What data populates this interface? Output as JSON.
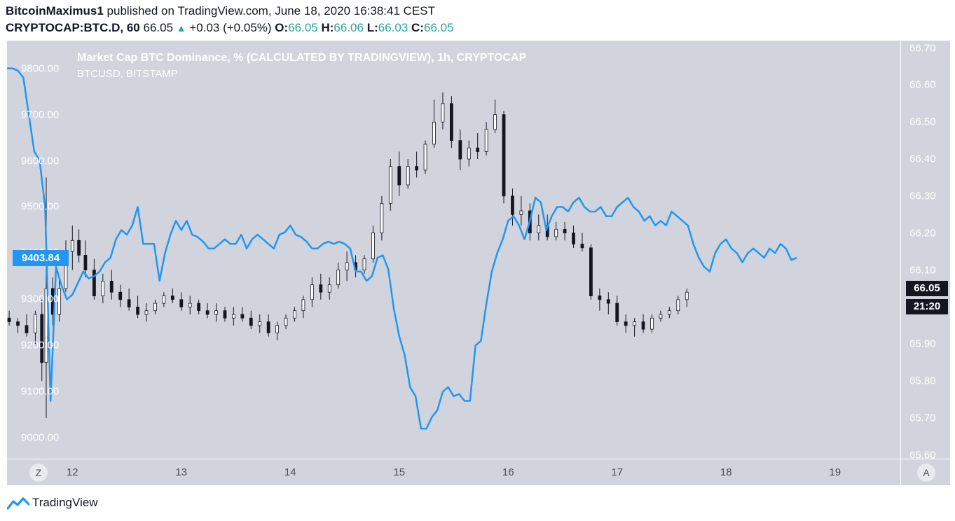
{
  "header": {
    "author": "BitcoinMaximus1",
    "published_text": "published on TradingView.com, June 18, 2020 16:38:41 CEST",
    "symbol": "CRYPTOCAP:BTC.D, 60",
    "last": "66.05",
    "change": "+0.03 (+0.05%)",
    "o_label": "O:",
    "o_value": "66.05",
    "h_label": "H:",
    "h_value": "66.06",
    "l_label": "L:",
    "l_value": "66.03",
    "c_label": "C:",
    "c_value": "66.05"
  },
  "legend": {
    "series1": "Market Cap BTC Dominance, % (CALCULATED BY TRADINGVIEW), 1h, CRYPTOCAP",
    "series2": "BTCUSD, BITSTAMP"
  },
  "tags": {
    "btcusd_last": "9403.84",
    "dominance_last": "66.05",
    "countdown": "21:20"
  },
  "buttons": {
    "left": "Z",
    "right": "A"
  },
  "brand": {
    "name": "TradingView"
  },
  "colors": {
    "line": "#2196f3",
    "bull": "#ffffff",
    "bear": "#131722",
    "plot_bg": "#d1d4dc"
  },
  "chart_data": {
    "type": "candlestick+line",
    "left_axis": {
      "label": "BTCUSD",
      "ticks": [
        "9800.00",
        "9700.00",
        "9600.00",
        "9500.00",
        "9400.00",
        "9300.00",
        "9200.00",
        "9100.00",
        "9000.00"
      ],
      "range": [
        8955,
        9860
      ]
    },
    "right_axis": {
      "label": "BTC.D %",
      "ticks": [
        "66.70",
        "66.60",
        "66.50",
        "66.40",
        "66.30",
        "66.20",
        "66.10",
        "66.00",
        "65.90",
        "65.80",
        "65.70",
        "65.60"
      ],
      "range": [
        65.59,
        66.72
      ]
    },
    "x_ticks": [
      "12",
      "13",
      "14",
      "15",
      "16",
      "17",
      "18",
      "19"
    ],
    "x_range_days": [
      11.4,
      19.6
    ],
    "btcusd_line": [
      [
        11.4,
        9800
      ],
      [
        11.45,
        9800
      ],
      [
        11.5,
        9795
      ],
      [
        11.55,
        9780
      ],
      [
        11.6,
        9700
      ],
      [
        11.65,
        9620
      ],
      [
        11.7,
        9600
      ],
      [
        11.75,
        9500
      ],
      [
        11.8,
        9080
      ],
      [
        11.85,
        9370
      ],
      [
        11.9,
        9330
      ],
      [
        11.95,
        9300
      ],
      [
        12.0,
        9310
      ],
      [
        12.05,
        9335
      ],
      [
        12.1,
        9360
      ],
      [
        12.15,
        9345
      ],
      [
        12.2,
        9350
      ],
      [
        12.25,
        9360
      ],
      [
        12.3,
        9380
      ],
      [
        12.35,
        9390
      ],
      [
        12.4,
        9430
      ],
      [
        12.45,
        9450
      ],
      [
        12.5,
        9440
      ],
      [
        12.55,
        9460
      ],
      [
        12.6,
        9500
      ],
      [
        12.65,
        9420
      ],
      [
        12.7,
        9420
      ],
      [
        12.75,
        9420
      ],
      [
        12.8,
        9340
      ],
      [
        12.85,
        9400
      ],
      [
        12.9,
        9440
      ],
      [
        12.95,
        9470
      ],
      [
        13.0,
        9450
      ],
      [
        13.05,
        9470
      ],
      [
        13.1,
        9440
      ],
      [
        13.15,
        9435
      ],
      [
        13.2,
        9425
      ],
      [
        13.25,
        9410
      ],
      [
        13.3,
        9410
      ],
      [
        13.35,
        9420
      ],
      [
        13.4,
        9430
      ],
      [
        13.45,
        9420
      ],
      [
        13.5,
        9420
      ],
      [
        13.55,
        9440
      ],
      [
        13.6,
        9410
      ],
      [
        13.65,
        9430
      ],
      [
        13.7,
        9440
      ],
      [
        13.75,
        9430
      ],
      [
        13.8,
        9420
      ],
      [
        13.85,
        9410
      ],
      [
        13.9,
        9440
      ],
      [
        13.95,
        9445
      ],
      [
        14.0,
        9460
      ],
      [
        14.05,
        9440
      ],
      [
        14.1,
        9435
      ],
      [
        14.15,
        9425
      ],
      [
        14.2,
        9410
      ],
      [
        14.25,
        9410
      ],
      [
        14.3,
        9420
      ],
      [
        14.35,
        9425
      ],
      [
        14.4,
        9420
      ],
      [
        14.45,
        9425
      ],
      [
        14.5,
        9420
      ],
      [
        14.55,
        9410
      ],
      [
        14.6,
        9360
      ],
      [
        14.65,
        9360
      ],
      [
        14.7,
        9340
      ],
      [
        14.75,
        9350
      ],
      [
        14.8,
        9390
      ],
      [
        14.85,
        9395
      ],
      [
        14.9,
        9365
      ],
      [
        14.95,
        9280
      ],
      [
        15.0,
        9220
      ],
      [
        15.05,
        9180
      ],
      [
        15.1,
        9110
      ],
      [
        15.15,
        9090
      ],
      [
        15.2,
        9020
      ],
      [
        15.25,
        9020
      ],
      [
        15.3,
        9045
      ],
      [
        15.35,
        9060
      ],
      [
        15.4,
        9100
      ],
      [
        15.45,
        9110
      ],
      [
        15.5,
        9090
      ],
      [
        15.55,
        9095
      ],
      [
        15.6,
        9080
      ],
      [
        15.65,
        9080
      ],
      [
        15.7,
        9200
      ],
      [
        15.75,
        9210
      ],
      [
        15.8,
        9290
      ],
      [
        15.85,
        9360
      ],
      [
        15.9,
        9400
      ],
      [
        15.95,
        9430
      ],
      [
        16.0,
        9470
      ],
      [
        16.05,
        9480
      ],
      [
        16.1,
        9460
      ],
      [
        16.15,
        9430
      ],
      [
        16.2,
        9470
      ],
      [
        16.25,
        9520
      ],
      [
        16.3,
        9510
      ],
      [
        16.35,
        9450
      ],
      [
        16.4,
        9480
      ],
      [
        16.45,
        9500
      ],
      [
        16.5,
        9500
      ],
      [
        16.55,
        9490
      ],
      [
        16.6,
        9510
      ],
      [
        16.65,
        9520
      ],
      [
        16.7,
        9500
      ],
      [
        16.75,
        9490
      ],
      [
        16.8,
        9490
      ],
      [
        16.85,
        9500
      ],
      [
        16.9,
        9480
      ],
      [
        16.95,
        9480
      ],
      [
        17.0,
        9500
      ],
      [
        17.05,
        9510
      ],
      [
        17.1,
        9520
      ],
      [
        17.15,
        9500
      ],
      [
        17.2,
        9490
      ],
      [
        17.25,
        9470
      ],
      [
        17.3,
        9480
      ],
      [
        17.35,
        9460
      ],
      [
        17.4,
        9470
      ],
      [
        17.45,
        9460
      ],
      [
        17.5,
        9490
      ],
      [
        17.55,
        9480
      ],
      [
        17.6,
        9470
      ],
      [
        17.65,
        9460
      ],
      [
        17.7,
        9420
      ],
      [
        17.75,
        9390
      ],
      [
        17.8,
        9370
      ],
      [
        17.85,
        9360
      ],
      [
        17.9,
        9400
      ],
      [
        17.95,
        9420
      ],
      [
        18.0,
        9430
      ],
      [
        18.05,
        9410
      ],
      [
        18.1,
        9400
      ],
      [
        18.15,
        9380
      ],
      [
        18.2,
        9400
      ],
      [
        18.25,
        9410
      ],
      [
        18.3,
        9400
      ],
      [
        18.35,
        9390
      ],
      [
        18.4,
        9410
      ],
      [
        18.45,
        9400
      ],
      [
        18.5,
        9420
      ],
      [
        18.55,
        9410
      ],
      [
        18.6,
        9385
      ],
      [
        18.65,
        9390
      ]
    ],
    "dominance_candles": [
      [
        11.42,
        65.97,
        65.99,
        65.95,
        65.96
      ],
      [
        11.5,
        65.96,
        65.97,
        65.93,
        65.95
      ],
      [
        11.58,
        65.95,
        65.98,
        65.92,
        65.93
      ],
      [
        11.66,
        65.93,
        65.99,
        65.9,
        65.98
      ],
      [
        11.72,
        65.98,
        66.02,
        65.8,
        65.85
      ],
      [
        11.76,
        65.85,
        66.35,
        65.7,
        66.05
      ],
      [
        11.82,
        66.05,
        66.08,
        65.95,
        65.98
      ],
      [
        11.88,
        65.98,
        66.08,
        65.96,
        66.05
      ],
      [
        11.94,
        66.05,
        66.18,
        66.04,
        66.15
      ],
      [
        12.0,
        66.15,
        66.22,
        66.1,
        66.18
      ],
      [
        12.06,
        66.18,
        66.21,
        66.12,
        66.14
      ],
      [
        12.12,
        66.14,
        66.18,
        66.08,
        66.1
      ],
      [
        12.2,
        66.1,
        66.13,
        66.02,
        66.03
      ],
      [
        12.28,
        66.03,
        66.09,
        66.01,
        66.07
      ],
      [
        12.36,
        66.07,
        66.1,
        66.02,
        66.04
      ],
      [
        12.44,
        66.04,
        66.06,
        66.0,
        66.02
      ],
      [
        12.52,
        66.02,
        66.05,
        65.99,
        66.0
      ],
      [
        12.6,
        66.0,
        66.03,
        65.97,
        65.98
      ],
      [
        12.68,
        65.98,
        66.01,
        65.96,
        65.99
      ],
      [
        12.76,
        65.99,
        66.02,
        65.98,
        66.01
      ],
      [
        12.84,
        66.01,
        66.04,
        66.0,
        66.03
      ],
      [
        12.92,
        66.03,
        66.05,
        66.01,
        66.02
      ],
      [
        13.0,
        66.02,
        66.04,
        65.99,
        66.0
      ],
      [
        13.08,
        66.0,
        66.03,
        65.98,
        66.01
      ],
      [
        13.16,
        66.01,
        66.02,
        65.98,
        65.99
      ],
      [
        13.24,
        65.99,
        66.01,
        65.97,
        65.98
      ],
      [
        13.32,
        65.98,
        66.01,
        65.96,
        65.99
      ],
      [
        13.4,
        65.99,
        66.0,
        65.96,
        65.97
      ],
      [
        13.48,
        65.97,
        66.0,
        65.95,
        65.98
      ],
      [
        13.56,
        65.98,
        66.0,
        65.96,
        65.97
      ],
      [
        13.64,
        65.97,
        65.99,
        65.94,
        65.95
      ],
      [
        13.72,
        65.95,
        65.98,
        65.93,
        65.96
      ],
      [
        13.8,
        65.96,
        65.98,
        65.92,
        65.93
      ],
      [
        13.88,
        65.93,
        65.96,
        65.91,
        65.95
      ],
      [
        13.96,
        65.95,
        65.98,
        65.94,
        65.97
      ],
      [
        14.04,
        65.97,
        66.0,
        65.96,
        65.99
      ],
      [
        14.12,
        65.99,
        66.03,
        65.97,
        66.02
      ],
      [
        14.2,
        66.02,
        66.08,
        66.0,
        66.06
      ],
      [
        14.28,
        66.06,
        66.09,
        66.02,
        66.04
      ],
      [
        14.36,
        66.04,
        66.08,
        66.02,
        66.06
      ],
      [
        14.44,
        66.06,
        66.12,
        66.05,
        66.1
      ],
      [
        14.52,
        66.1,
        66.15,
        66.07,
        66.12
      ],
      [
        14.6,
        66.12,
        66.14,
        66.08,
        66.1
      ],
      [
        14.68,
        66.1,
        66.14,
        66.09,
        66.13
      ],
      [
        14.76,
        66.13,
        66.22,
        66.12,
        66.2
      ],
      [
        14.84,
        66.2,
        66.3,
        66.18,
        66.28
      ],
      [
        14.92,
        66.28,
        66.4,
        66.26,
        66.38
      ],
      [
        15.0,
        66.38,
        66.42,
        66.3,
        66.33
      ],
      [
        15.08,
        66.33,
        66.4,
        66.32,
        66.38
      ],
      [
        15.16,
        66.38,
        66.42,
        66.35,
        66.37
      ],
      [
        15.24,
        66.37,
        66.45,
        66.36,
        66.44
      ],
      [
        15.32,
        66.44,
        66.56,
        66.43,
        66.5
      ],
      [
        15.4,
        66.5,
        66.58,
        66.48,
        66.55
      ],
      [
        15.48,
        66.55,
        66.57,
        66.43,
        66.45
      ],
      [
        15.56,
        66.45,
        66.48,
        66.37,
        66.4
      ],
      [
        15.64,
        66.4,
        66.45,
        66.38,
        66.43
      ],
      [
        15.72,
        66.43,
        66.47,
        66.4,
        66.42
      ],
      [
        15.8,
        66.42,
        66.5,
        66.41,
        66.48
      ],
      [
        15.88,
        66.48,
        66.56,
        66.47,
        66.52
      ],
      [
        15.96,
        66.52,
        66.53,
        66.28,
        66.3
      ],
      [
        16.04,
        66.3,
        66.32,
        66.22,
        66.25
      ],
      [
        16.12,
        66.25,
        66.3,
        66.22,
        66.26
      ],
      [
        16.2,
        66.26,
        66.28,
        66.18,
        66.2
      ],
      [
        16.28,
        66.2,
        66.25,
        66.18,
        66.22
      ],
      [
        16.36,
        66.22,
        66.25,
        66.18,
        66.19
      ],
      [
        16.44,
        66.19,
        66.23,
        66.18,
        66.21
      ],
      [
        16.52,
        66.21,
        66.23,
        66.18,
        66.2
      ],
      [
        16.6,
        66.2,
        66.22,
        66.16,
        66.17
      ],
      [
        16.68,
        66.17,
        66.2,
        66.15,
        66.16
      ],
      [
        16.76,
        66.16,
        66.17,
        66.02,
        66.03
      ],
      [
        16.84,
        66.03,
        66.05,
        65.99,
        66.02
      ],
      [
        16.92,
        66.02,
        66.04,
        65.98,
        66.01
      ],
      [
        17.0,
        66.01,
        66.03,
        65.95,
        65.96
      ],
      [
        17.08,
        65.96,
        65.98,
        65.93,
        65.95
      ],
      [
        17.16,
        65.95,
        65.97,
        65.92,
        65.96
      ],
      [
        17.24,
        65.96,
        65.98,
        65.93,
        65.94
      ],
      [
        17.32,
        65.94,
        65.98,
        65.93,
        65.97
      ],
      [
        17.4,
        65.97,
        65.99,
        65.96,
        65.98
      ],
      [
        17.48,
        65.98,
        66.0,
        65.97,
        65.99
      ],
      [
        17.56,
        65.99,
        66.03,
        65.98,
        66.02
      ],
      [
        17.64,
        66.02,
        66.05,
        66.0,
        66.04
      ]
    ]
  }
}
